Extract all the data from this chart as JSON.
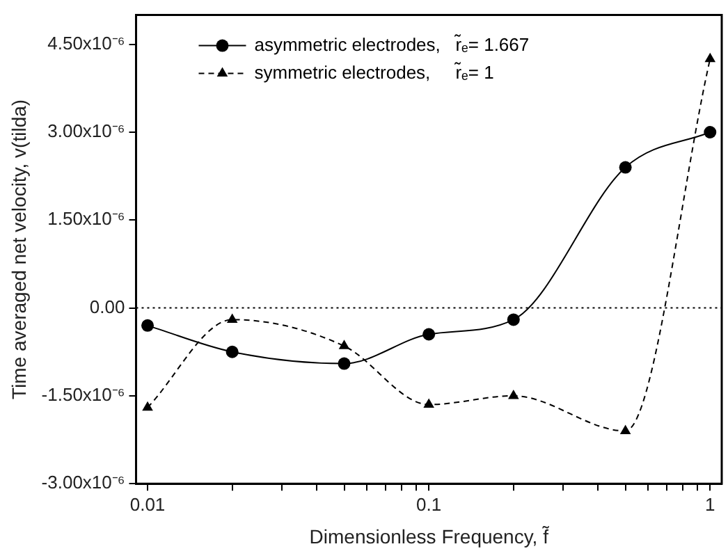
{
  "chart_data": {
    "type": "line",
    "xlabel": "Dimensionless Frequency, f̃",
    "ylabel": "Time averaged net velocity, v(tilda)",
    "x": [
      0.01,
      0.02,
      0.05,
      0.1,
      0.2,
      0.5,
      1
    ],
    "series": [
      {
        "name": "asymmetric electrodes,   r̃ₑ= 1.667",
        "color": "#000000",
        "marker": "circle",
        "line_style": "solid",
        "values": [
          -3e-07,
          -7.5e-07,
          -9.5e-07,
          -4.5e-07,
          -2e-07,
          2.4e-06,
          3e-06
        ]
      },
      {
        "name": "symmetric electrodes,     r̃ₑ= 1",
        "color": "#000000",
        "marker": "triangle",
        "line_style": "dashed",
        "values": [
          -1.7e-06,
          -2e-07,
          -6.5e-07,
          -1.65e-06,
          -1.5e-06,
          -2.1e-06,
          4.25e-06
        ]
      }
    ],
    "log": "x",
    "xlim": [
      0.0091,
      1.1
    ],
    "xticks": [
      0.01,
      {
        "value": 0.02,
        "label": null
      },
      {
        "value": 0.03,
        "label": null
      },
      {
        "value": 0.04,
        "label": null
      },
      {
        "value": 0.05,
        "label": null
      },
      {
        "value": 0.06,
        "label": null
      },
      {
        "value": 0.07,
        "label": null
      },
      {
        "value": 0.08,
        "label": null
      },
      {
        "value": 0.09,
        "label": null
      },
      0.1,
      {
        "value": 0.2,
        "label": null
      },
      {
        "value": 0.3,
        "label": null
      },
      {
        "value": 0.4,
        "label": null
      },
      {
        "value": 0.5,
        "label": null
      },
      {
        "value": 0.6,
        "label": null
      },
      {
        "value": 0.7,
        "label": null
      },
      {
        "value": 0.8,
        "label": null
      },
      {
        "value": 0.9,
        "label": null
      },
      1
    ],
    "ylim": [
      -3e-06,
      5e-06
    ],
    "yticks": [
      {
        "value": -3e-06,
        "label": "-3.00x10⁻⁶"
      },
      {
        "value": -1.5e-06,
        "label": "-1.50x10⁻⁶"
      },
      {
        "value": 0,
        "label": "0.00"
      },
      {
        "value": 1.5e-06,
        "label": "1.50x10⁻⁶"
      },
      {
        "value": 3e-06,
        "label": "3.00x10⁻⁶"
      },
      {
        "value": 4.5e-06,
        "label": "4.50x10⁻⁶"
      }
    ],
    "ref_lines": [
      {
        "axis": "y",
        "value": 0,
        "line_style": "dotted"
      }
    ],
    "grid": false,
    "legend": "top left"
  }
}
